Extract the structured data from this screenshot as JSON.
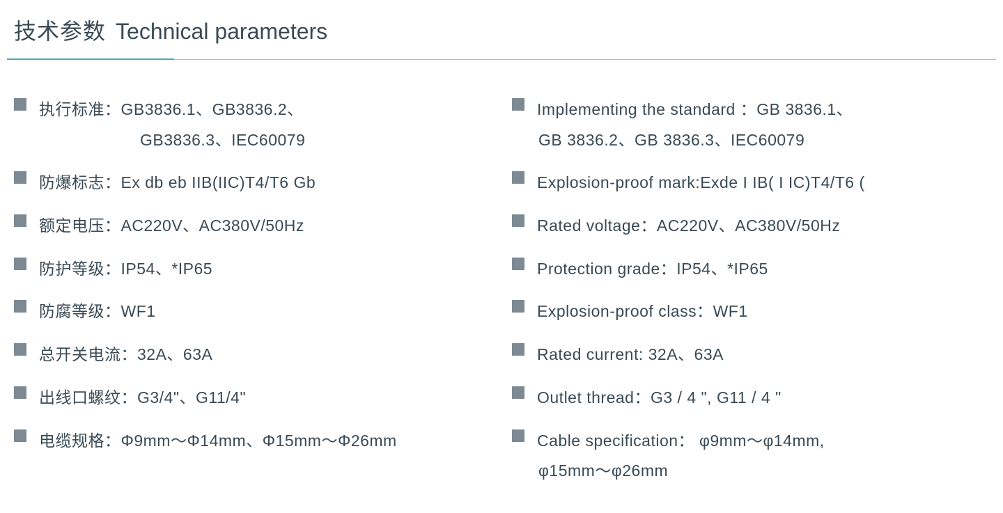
{
  "heading": {
    "cn": "技术参数",
    "en": "Technical parameters"
  },
  "colors": {
    "text": "#3a4a54",
    "bullet": "#7d8a93",
    "accent": "#4aa8b0",
    "divider": "#b8b8b8",
    "background": "#ffffff"
  },
  "left_items": [
    {
      "line1": "执行标准：GB3836.1、GB3836.2、",
      "line2": "GB3836.3、IEC60079",
      "indent": 145
    },
    {
      "line1": "防爆标志：Ex db eb IIB(IIC)T4/T6 Gb"
    },
    {
      "line1": "额定电压：AC220V、AC380V/50Hz"
    },
    {
      "line1": "防护等级：IP54、*IP65"
    },
    {
      "line1": "防腐等级：WF1"
    },
    {
      "line1": "总开关电流：32A、63A"
    },
    {
      "line1": "出线口螺纹：G3/4\"、G11/4\""
    },
    {
      "line1": "电缆规格：Φ9mm～Φ14mm、Φ15mm～Φ26mm"
    }
  ],
  "right_items": [
    {
      "line1": "Implementing the standard ：GB 3836.1、",
      "line2": "GB 3836.2、GB 3836.3、IEC60079",
      "indent": 2
    },
    {
      "line1": "Explosion-proof mark:Exde I IB( I IC)T4/T6 ("
    },
    {
      "line1": "Rated voltage：AC220V、AC380V/50Hz"
    },
    {
      "line1": "Protection grade：IP54、*IP65"
    },
    {
      "line1": "Explosion-proof class：WF1"
    },
    {
      "line1": "Rated current: 32A、63A"
    },
    {
      "line1": "Outlet thread：G3 / 4 \", G11 / 4 \""
    },
    {
      "line1": "Cable specification： φ9mm～φ14mm,",
      "line2": "φ15mm～φ26mm",
      "indent": 2
    }
  ]
}
